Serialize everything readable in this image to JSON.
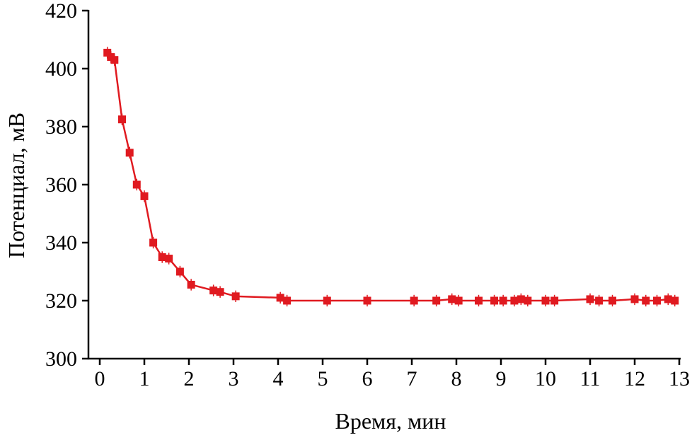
{
  "figure": {
    "background": "#ffffff",
    "axis_color": "#000000"
  },
  "chart_data": {
    "type": "line",
    "title": "",
    "xlabel": "Время, мин",
    "ylabel": "Потенциал, мВ",
    "xlim": [
      0,
      13
    ],
    "ylim": [
      300,
      420
    ],
    "xticks": [
      0,
      1,
      2,
      3,
      4,
      5,
      6,
      7,
      8,
      9,
      10,
      11,
      12,
      13
    ],
    "yticks": [
      300,
      320,
      340,
      360,
      380,
      400,
      420
    ],
    "grid": false,
    "legend": "none",
    "marker": "square",
    "color": "#e01a20",
    "yerr": 2,
    "series": [
      {
        "name": "potential",
        "x": [
          0.17,
          0.25,
          0.33,
          0.5,
          0.67,
          0.83,
          1.0,
          1.2,
          1.4,
          1.55,
          1.8,
          2.05,
          2.55,
          2.7,
          3.05,
          4.05,
          4.2,
          5.1,
          6.0,
          7.05,
          7.55,
          7.9,
          8.05,
          8.5,
          8.85,
          9.05,
          9.3,
          9.45,
          9.6,
          10.0,
          10.2,
          11.0,
          11.2,
          11.5,
          12.0,
          12.25,
          12.5,
          12.75,
          12.9
        ],
        "y": [
          405.5,
          404,
          403,
          382.5,
          371,
          360,
          356,
          340,
          335,
          334.5,
          330,
          325.5,
          323.5,
          323,
          321.5,
          321,
          320,
          320,
          320,
          320,
          320,
          320.5,
          320,
          320,
          320,
          320,
          320,
          320.5,
          320,
          320,
          320,
          320.5,
          320,
          320,
          320.5,
          320,
          320,
          320.5,
          320
        ]
      }
    ]
  }
}
